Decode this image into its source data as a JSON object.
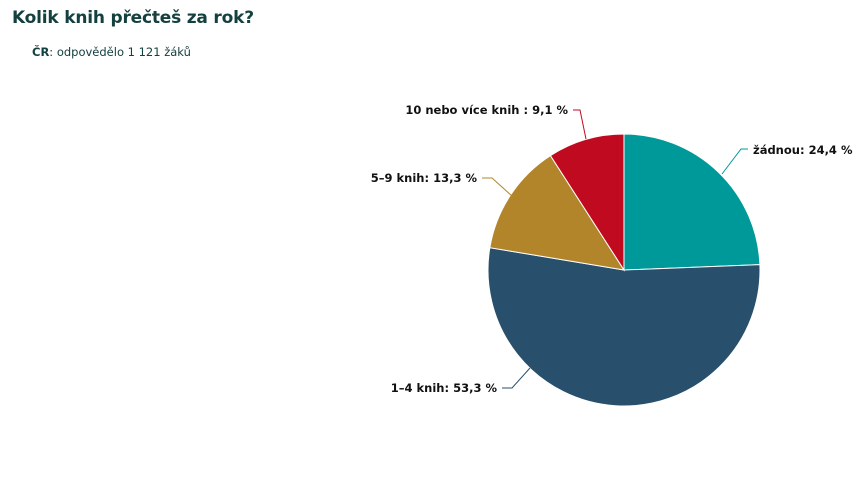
{
  "header": {
    "title": "Kolik knih přečteš za rok?",
    "subtitle_bold": "ČR",
    "subtitle_rest": ": odpovědělo 1 121 žáků"
  },
  "chart_data": {
    "type": "pie",
    "title": "Kolik knih přečteš za rok?",
    "subtitle": "ČR: odpovědělo 1 121 žáků",
    "categories": [
      "žádnou",
      "1–4 knih",
      "5–9 knih",
      "10 nebo více knih "
    ],
    "values": [
      24.4,
      53.3,
      13.3,
      9.1
    ],
    "colors": [
      "#009999",
      "#284f6b",
      "#b3852b",
      "#c00a1f"
    ],
    "labels": [
      "žádnou: 24,4 %",
      "1–4 knih: 53,3 %",
      "5–9 knih: 13,3 %",
      "10 nebo více knih : 9,1 %"
    ],
    "legend": "none",
    "start_angle": "12 o'clock, clockwise"
  }
}
